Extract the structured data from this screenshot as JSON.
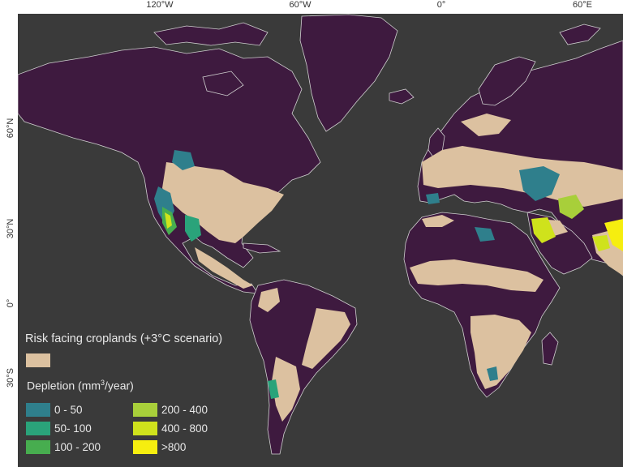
{
  "axes": {
    "longitude_ticks": [
      "120°W",
      "60°W",
      "0°",
      "60°E"
    ],
    "latitude_ticks": [
      "60°N",
      "30°N",
      "0°",
      "30°S"
    ]
  },
  "legend": {
    "risk_title": "Risk facing croplands (+3°C scenario)",
    "risk_color": "#dcc1a0",
    "depletion_prefix": "Depletion (mm",
    "depletion_exp": "3",
    "depletion_suffix": "/year)",
    "classes": [
      {
        "label": "0 - 50",
        "color": "#2f7f8c"
      },
      {
        "label": "50- 100",
        "color": "#2aa37a"
      },
      {
        "label": "100 - 200",
        "color": "#47ad4f"
      },
      {
        "label": "200 - 400",
        "color": "#a8cf3a"
      },
      {
        "label": "400 - 800",
        "color": "#cfe21c"
      },
      {
        "label": ">800",
        "color": "#f6ee0f"
      }
    ]
  },
  "colors": {
    "ocean": "#3a3a3a",
    "land": "#3e1a3f",
    "coast": "#cfcfcf",
    "cropland": "#dcc1a0"
  }
}
